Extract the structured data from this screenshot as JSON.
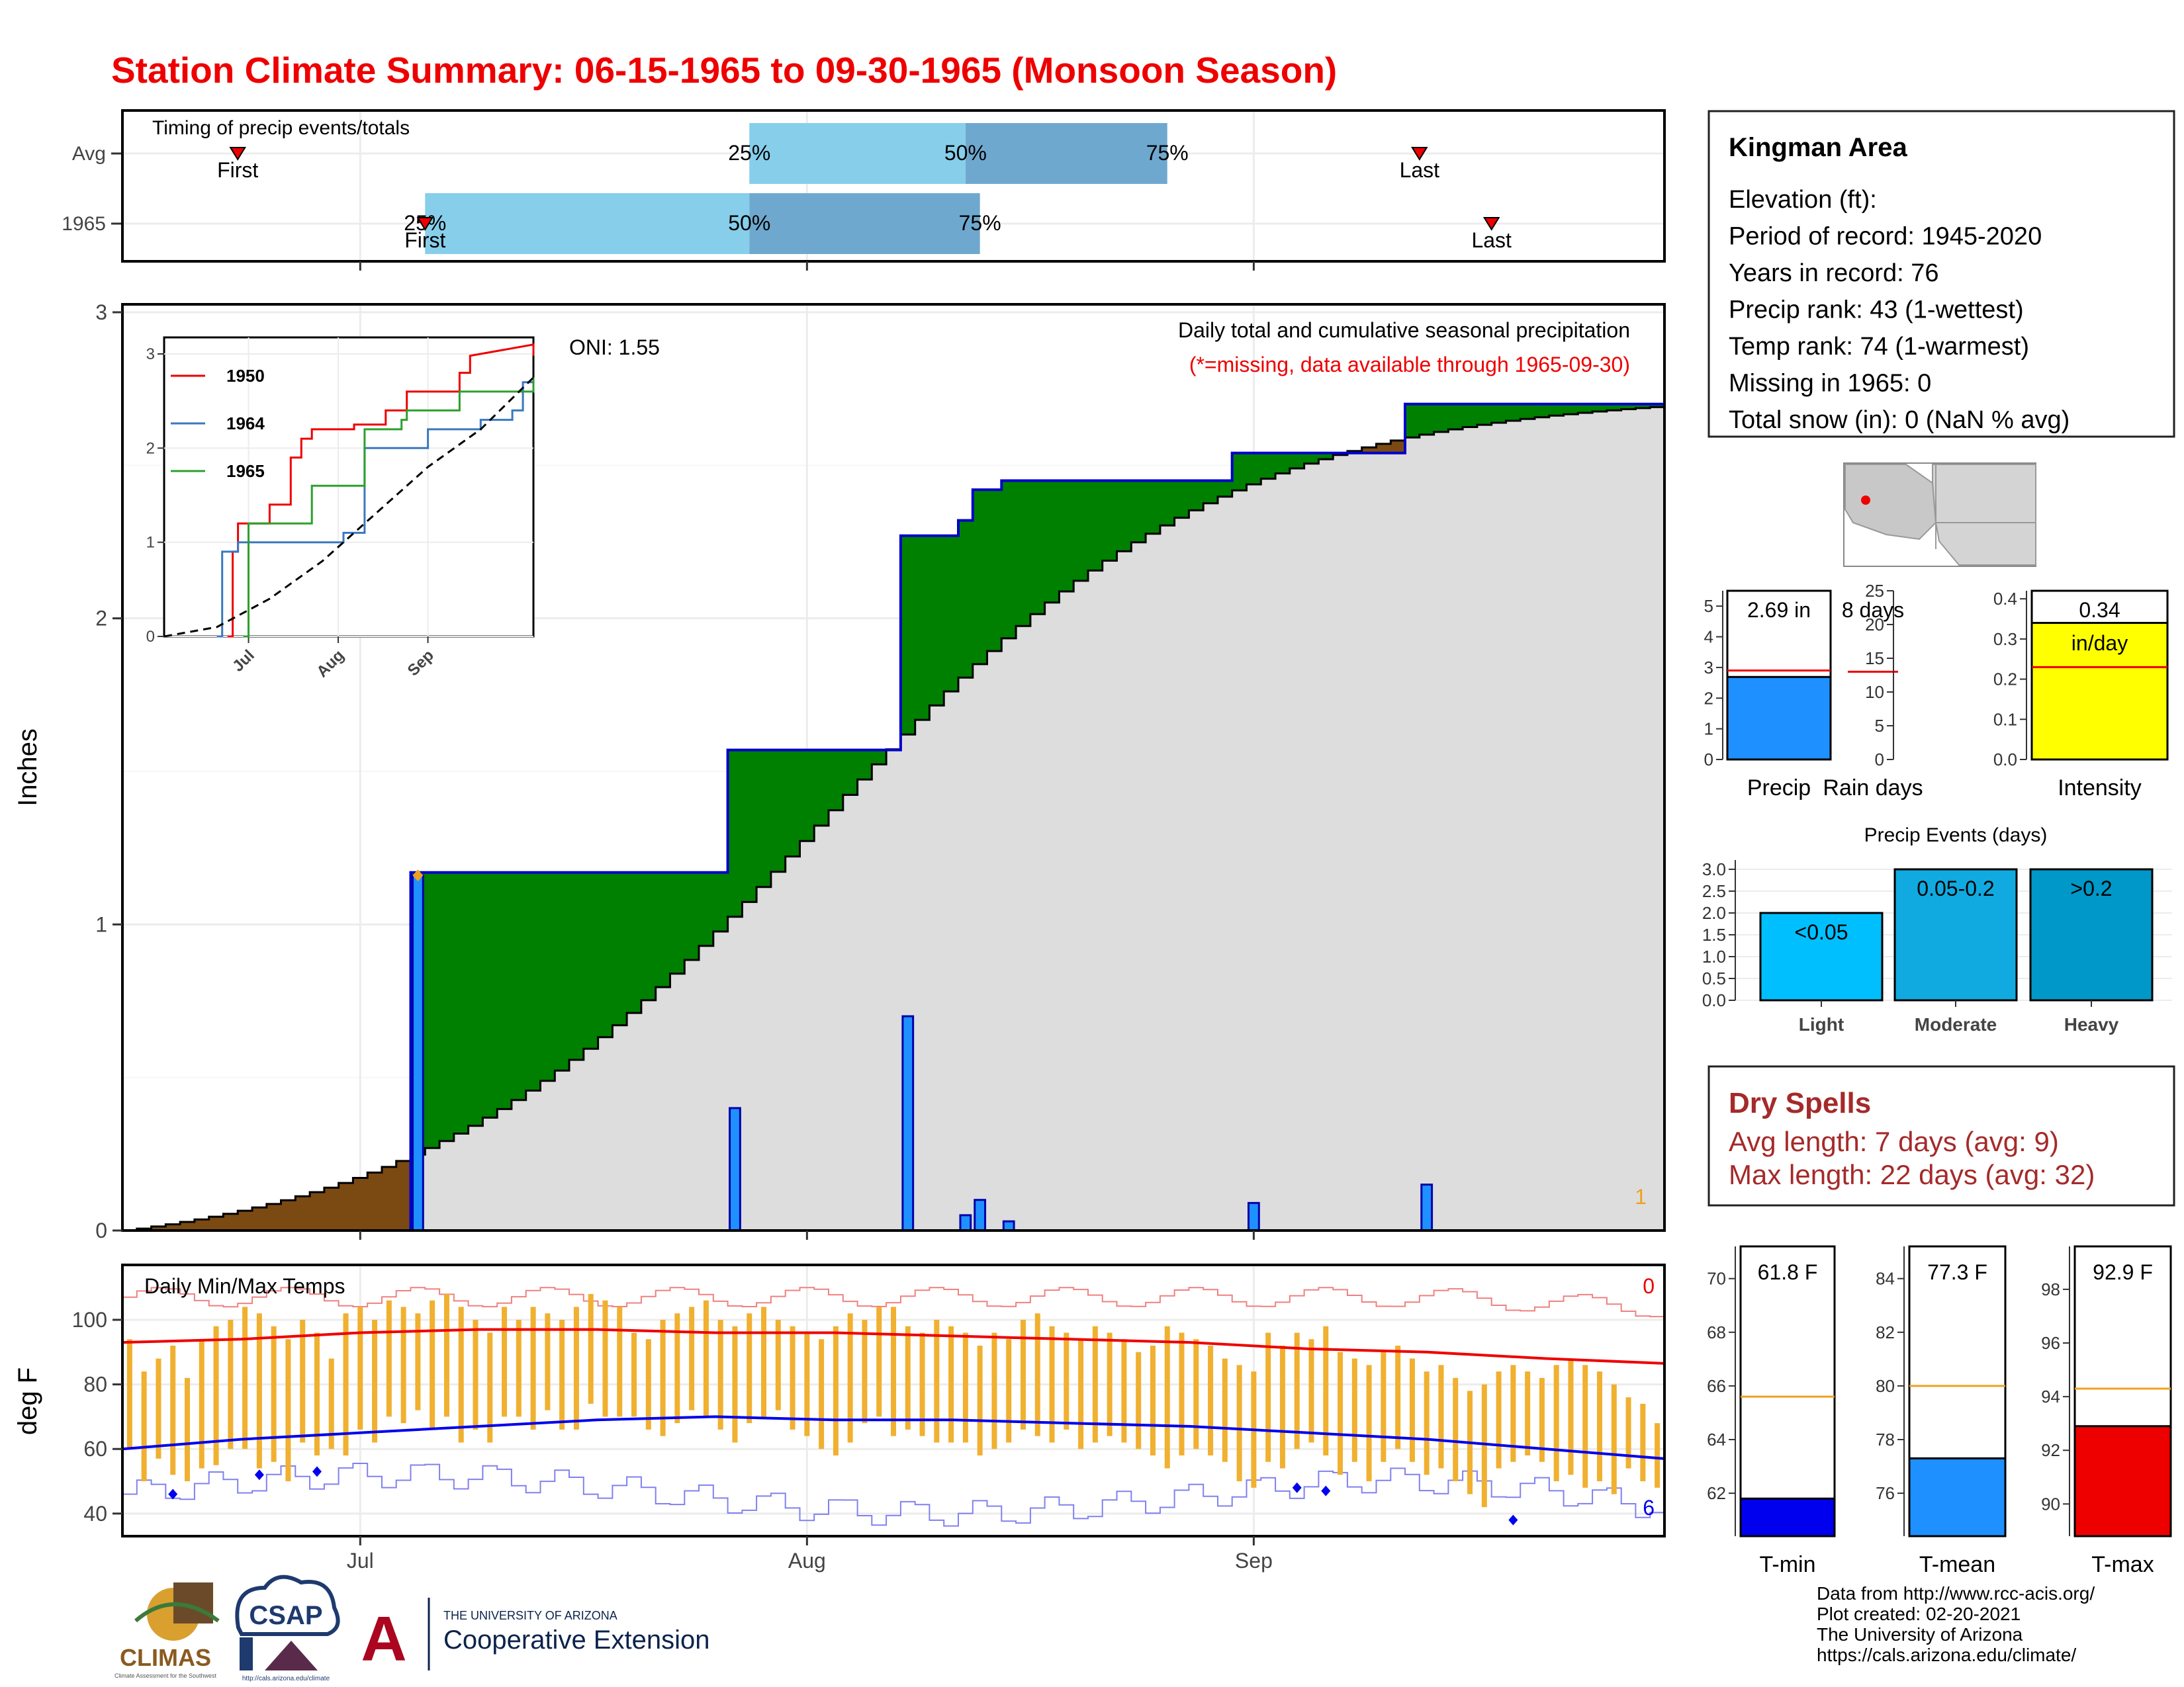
{
  "title": "Station Climate Summary: 06-15-1965 to 09-30-1965 (Monsoon Season)",
  "colors": {
    "title": "#ee0000",
    "cumulative_fill": "#008000",
    "avg_fill": "#dddddd",
    "deficit_fill": "#7b4a12",
    "daily_bar": "#1e90ff",
    "quartile_light": "#87ceeb",
    "quartile_dark": "#6fa8cf",
    "temp_bar": "#f0b030",
    "tmax_line": "#ee0000",
    "tmin_line": "#0000ee",
    "dry_spells": "#a52a2a"
  },
  "timing": {
    "title": "Timing of precip events/totals",
    "rows": [
      {
        "label": "Avg",
        "first_label": "First",
        "last_label": "Last",
        "p25_label": "25%",
        "p50_label": "50%",
        "p75_label": "75%",
        "first_day": 7.5,
        "last_day": 89.5,
        "p25": 43,
        "p50": 58,
        "p75": 72
      },
      {
        "label": "1965",
        "first_label": "First",
        "last_label": "Last",
        "p25_label": "25%",
        "p50_label": "50%",
        "p75_label": "75%",
        "first_day": 20.5,
        "last_day": 94.5,
        "p25": 20.5,
        "p50": 43,
        "p75": 59
      }
    ]
  },
  "main": {
    "y_axis_label": "Inches",
    "y_ticks": [
      "0",
      "1",
      "2",
      "3"
    ],
    "x_ticks": [
      "Jul",
      "Aug",
      "Sep"
    ],
    "oni": "ONI: 1.55",
    "caption": "Daily total and cumulative seasonal precipitation",
    "missing_note": "(*=missing, data available through 1965-09-30)",
    "missing_count": "1"
  },
  "chart_data": [
    {
      "type": "area",
      "title": "Daily total and cumulative seasonal precipitation",
      "ylabel": "Inches",
      "ylim": [
        0,
        3
      ],
      "x_start": "1965-06-15",
      "x_end": "1965-09-30",
      "avg_cumulative_end": 2.69,
      "observed_cumulative_steps": [
        {
          "day": 20,
          "value": 1.17
        },
        {
          "day": 42,
          "value": 1.57
        },
        {
          "day": 54,
          "value": 2.27
        },
        {
          "day": 58,
          "value": 2.32
        },
        {
          "day": 59,
          "value": 2.42
        },
        {
          "day": 61,
          "value": 2.45
        },
        {
          "day": 77,
          "value": 2.54
        },
        {
          "day": 89,
          "value": 2.7
        },
        {
          "day": 105,
          "value": 2.7
        }
      ],
      "daily_precip": [
        {
          "date": "1965-07-05",
          "value": 1.16
        },
        {
          "date": "1965-07-27",
          "value": 0.4
        },
        {
          "date": "1965-08-08",
          "value": 0.7
        },
        {
          "date": "1965-08-12",
          "value": 0.05
        },
        {
          "date": "1965-08-13",
          "value": 0.1
        },
        {
          "date": "1965-08-15",
          "value": 0.03
        },
        {
          "date": "1965-09-01",
          "value": 0.09
        },
        {
          "date": "1965-09-13",
          "value": 0.15
        }
      ]
    },
    {
      "type": "line",
      "ylim": [
        0,
        3
      ],
      "x_ticks": [
        "Jul",
        "Aug",
        "Sep"
      ],
      "y_ticks": [
        "0",
        "1",
        "2",
        "3"
      ],
      "series": [
        {
          "name": "1950",
          "color": "#ee0000",
          "points": [
            [
              12,
              0
            ],
            [
              13,
              0.9
            ],
            [
              14,
              1.2
            ],
            [
              20,
              1.4
            ],
            [
              24,
              1.9
            ],
            [
              26,
              2.1
            ],
            [
              28,
              2.2
            ],
            [
              36,
              2.25
            ],
            [
              42,
              2.4
            ],
            [
              46,
              2.6
            ],
            [
              56,
              2.8
            ],
            [
              58,
              3.1
            ],
            [
              70,
              3.1
            ]
          ]
        },
        {
          "name": "1964",
          "color": "#3a78c0",
          "points": [
            [
              10,
              0
            ],
            [
              11,
              0.9
            ],
            [
              14,
              1.0
            ],
            [
              26,
              1.0
            ],
            [
              34,
              1.1
            ],
            [
              38,
              2.0
            ],
            [
              50,
              2.2
            ],
            [
              60,
              2.3
            ],
            [
              66,
              2.4
            ],
            [
              68,
              2.7
            ],
            [
              70,
              2.7
            ]
          ]
        },
        {
          "name": "1965",
          "color": "#2ca02c",
          "points": [
            [
              15,
              0
            ],
            [
              16,
              1.2
            ],
            [
              24,
              1.2
            ],
            [
              28,
              1.6
            ],
            [
              38,
              2.2
            ],
            [
              45,
              2.3
            ],
            [
              46,
              2.4
            ],
            [
              56,
              2.6
            ],
            [
              70,
              2.75
            ]
          ]
        },
        {
          "name": "avg",
          "color": "#000000",
          "dashed": true,
          "points": [
            [
              0,
              0
            ],
            [
              10,
              0.1
            ],
            [
              20,
              0.4
            ],
            [
              30,
              0.8
            ],
            [
              40,
              1.3
            ],
            [
              50,
              1.8
            ],
            [
              60,
              2.2
            ],
            [
              70,
              2.75
            ]
          ]
        }
      ]
    },
    {
      "type": "bar",
      "title": "Daily Min/Max Temps",
      "ylabel": "deg F",
      "ylim": [
        33,
        117
      ],
      "y_ticks": [
        "40",
        "60",
        "80",
        "100"
      ],
      "x_ticks": [
        "Jul",
        "Aug",
        "Sep"
      ],
      "missing_max": "0",
      "missing_min": "6",
      "avg_tmax": [
        93,
        94,
        96,
        97,
        97,
        96,
        96,
        95,
        94,
        93,
        91,
        90,
        88,
        86.5
      ],
      "avg_tmin": [
        60,
        63,
        65,
        67,
        69,
        70,
        69,
        69,
        68,
        67,
        65,
        63,
        60,
        57
      ],
      "days": [
        [
          94,
          60
        ],
        [
          84,
          50
        ],
        [
          88,
          57
        ],
        [
          92,
          52
        ],
        [
          82,
          50
        ],
        [
          94,
          54
        ],
        [
          98,
          55
        ],
        [
          100,
          60
        ],
        [
          104,
          60
        ],
        [
          102,
          54
        ],
        [
          98,
          56
        ],
        [
          94,
          50
        ],
        [
          100,
          62
        ],
        [
          96,
          58
        ],
        [
          88,
          60
        ],
        [
          102,
          58
        ],
        [
          104,
          66
        ],
        [
          100,
          62
        ],
        [
          106,
          70
        ],
        [
          104,
          68
        ],
        [
          102,
          72
        ],
        [
          106,
          66
        ],
        [
          108,
          70
        ],
        [
          104,
          62
        ],
        [
          100,
          66
        ],
        [
          96,
          62
        ],
        [
          104,
          70
        ],
        [
          100,
          70
        ],
        [
          104,
          66
        ],
        [
          102,
          72
        ],
        [
          100,
          66
        ],
        [
          104,
          66
        ],
        [
          108,
          74
        ],
        [
          106,
          70
        ],
        [
          104,
          70
        ],
        [
          96,
          70
        ],
        [
          94,
          66
        ],
        [
          100,
          64
        ],
        [
          102,
          68
        ],
        [
          104,
          72
        ],
        [
          106,
          70
        ],
        [
          100,
          66
        ],
        [
          98,
          62
        ],
        [
          102,
          68
        ],
        [
          104,
          70
        ],
        [
          100,
          72
        ],
        [
          98,
          66
        ],
        [
          96,
          64
        ],
        [
          94,
          60
        ],
        [
          98,
          58
        ],
        [
          102,
          62
        ],
        [
          100,
          68
        ],
        [
          104,
          70
        ],
        [
          104,
          64
        ],
        [
          98,
          66
        ],
        [
          96,
          64
        ],
        [
          100,
          62
        ],
        [
          98,
          62
        ],
        [
          96,
          62
        ],
        [
          92,
          58
        ],
        [
          96,
          60
        ],
        [
          94,
          62
        ],
        [
          100,
          66
        ],
        [
          102,
          64
        ],
        [
          98,
          62
        ],
        [
          96,
          66
        ],
        [
          94,
          60
        ],
        [
          98,
          62
        ],
        [
          96,
          64
        ],
        [
          94,
          62
        ],
        [
          90,
          60
        ],
        [
          92,
          58
        ],
        [
          98,
          54
        ],
        [
          96,
          58
        ],
        [
          94,
          60
        ],
        [
          92,
          58
        ],
        [
          88,
          56
        ],
        [
          86,
          50
        ],
        [
          84,
          48
        ],
        [
          96,
          56
        ],
        [
          92,
          54
        ],
        [
          96,
          60
        ],
        [
          94,
          62
        ],
        [
          98,
          58
        ],
        [
          90,
          52
        ],
        [
          88,
          56
        ],
        [
          86,
          50
        ],
        [
          90,
          56
        ],
        [
          92,
          60
        ],
        [
          88,
          56
        ],
        [
          84,
          52
        ],
        [
          86,
          54
        ],
        [
          82,
          50
        ],
        [
          78,
          46
        ],
        [
          80,
          42
        ],
        [
          84,
          54
        ],
        [
          86,
          56
        ],
        [
          84,
          58
        ],
        [
          82,
          56
        ],
        [
          86,
          50
        ],
        [
          88,
          52
        ],
        [
          86,
          48
        ],
        [
          84,
          50
        ],
        [
          80,
          46
        ],
        [
          76,
          54
        ],
        [
          74,
          50
        ],
        [
          68,
          48
        ]
      ]
    },
    {
      "type": "bar",
      "title": "Precip",
      "categories": [
        "Precip"
      ],
      "values": [
        2.69
      ],
      "average": 2.9,
      "ylim": [
        0,
        5.5
      ],
      "y_ticks": [
        "0",
        "1",
        "2",
        "3",
        "4",
        "5"
      ],
      "value_label": "2.69 in"
    },
    {
      "type": "bar",
      "title": "Rain days",
      "categories": [
        "Rain days"
      ],
      "values": [
        8
      ],
      "average": 13,
      "ylim": [
        0,
        25
      ],
      "y_ticks": [
        "0",
        "5",
        "10",
        "15",
        "20",
        "25"
      ],
      "value_label": "8 days"
    },
    {
      "type": "bar",
      "title": "Intensity",
      "categories": [
        "Intensity"
      ],
      "values": [
        0.34
      ],
      "average": 0.23,
      "ylim": [
        0,
        0.42
      ],
      "y_ticks": [
        "0.0",
        "0.1",
        "0.2",
        "0.3",
        "0.4"
      ],
      "value_label": "0.34",
      "unit_label": "in/day"
    },
    {
      "type": "bar",
      "title": "Precip Events (days)",
      "categories": [
        "Light",
        "Moderate",
        "Heavy"
      ],
      "bar_labels": [
        "<0.05",
        "0.05-0.2",
        ">0.2"
      ],
      "values": [
        2,
        3,
        3
      ],
      "ylim": [
        0,
        3.1
      ],
      "y_ticks": [
        "0.0",
        "0.5",
        "1.0",
        "1.5",
        "2.0",
        "2.5",
        "3.0"
      ]
    },
    {
      "type": "bar",
      "title": "T-min",
      "categories": [
        "T-min"
      ],
      "values": [
        61.8
      ],
      "average": 65.6,
      "ylim": [
        60.4,
        71.2
      ],
      "y_ticks": [
        "62",
        "64",
        "66",
        "68",
        "70"
      ],
      "value_label": "61.8 F"
    },
    {
      "type": "bar",
      "title": "T-mean",
      "categories": [
        "T-mean"
      ],
      "values": [
        77.3
      ],
      "average": 80,
      "ylim": [
        74.4,
        85.2
      ],
      "y_ticks": [
        "76",
        "78",
        "80",
        "82",
        "84"
      ],
      "value_label": "77.3 F"
    },
    {
      "type": "bar",
      "title": "T-max",
      "categories": [
        "T-max"
      ],
      "values": [
        92.9
      ],
      "average": 94.3,
      "ylim": [
        88.8,
        99.6
      ],
      "y_ticks": [
        "90",
        "92",
        "94",
        "96",
        "98"
      ],
      "value_label": "92.9 F"
    }
  ],
  "station": {
    "name": "Kingman Area",
    "lines": [
      "Elevation (ft):",
      "Period of record: 1945-2020",
      "Years in record: 76",
      "Precip rank: 43 (1-wettest)",
      "Temp rank: 74 (1-warmest)",
      "Missing in 1965: 0",
      "Total snow (in): 0 (NaN % avg)"
    ]
  },
  "dry_spells": {
    "title": "Dry Spells",
    "avg": "Avg length: 7 days (avg: 9)",
    "max": "Max length: 22 days (avg: 32)"
  },
  "credits": [
    "Data from http://www.rcc-acis.org/",
    "Plot created: 02-20-2021",
    "The University of Arizona",
    "https://cals.arizona.edu/climate/"
  ],
  "logos": {
    "climas": "CLIMAS",
    "climas_sub": "Climate Assessment for the Southwest",
    "csap": "CSAP",
    "csap_url": "http://cals.arizona.edu/climate",
    "ua_letter": "A",
    "ua_top": "THE UNIVERSITY OF ARIZONA",
    "ua_bottom": "Cooperative Extension"
  }
}
